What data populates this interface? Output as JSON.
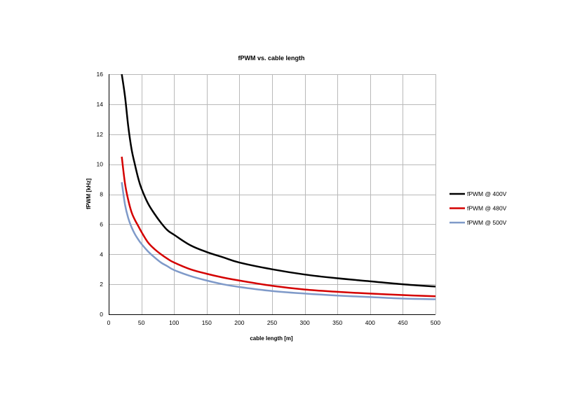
{
  "chart_data": {
    "type": "line",
    "title": "fPWM vs. cable length",
    "xlabel": "cable length [m]",
    "ylabel": "fPWM [kHz]",
    "xlim": [
      0,
      500
    ],
    "ylim": [
      0,
      16
    ],
    "xticks": [
      0,
      50,
      100,
      150,
      200,
      250,
      300,
      350,
      400,
      450,
      500
    ],
    "yticks": [
      0,
      2,
      4,
      6,
      8,
      10,
      12,
      14,
      16
    ],
    "grid": true,
    "legend_position": "right",
    "series": [
      {
        "name": "fPWM @ 400V",
        "color": "#000000",
        "points": [
          [
            20,
            16
          ],
          [
            25,
            14.5
          ],
          [
            30,
            12.5
          ],
          [
            35,
            11.0
          ],
          [
            40,
            10.0
          ],
          [
            45,
            9.1
          ],
          [
            50,
            8.4
          ],
          [
            60,
            7.4
          ],
          [
            70,
            6.7
          ],
          [
            80,
            6.1
          ],
          [
            90,
            5.6
          ],
          [
            100,
            5.3
          ],
          [
            125,
            4.6
          ],
          [
            150,
            4.15
          ],
          [
            175,
            3.8
          ],
          [
            200,
            3.45
          ],
          [
            250,
            3.0
          ],
          [
            300,
            2.65
          ],
          [
            350,
            2.4
          ],
          [
            400,
            2.2
          ],
          [
            450,
            2.0
          ],
          [
            500,
            1.85
          ]
        ]
      },
      {
        "name": "fPWM @ 480V",
        "color": "#d40000",
        "points": [
          [
            20,
            10.5
          ],
          [
            25,
            8.7
          ],
          [
            30,
            7.6
          ],
          [
            35,
            6.8
          ],
          [
            40,
            6.3
          ],
          [
            45,
            5.9
          ],
          [
            50,
            5.5
          ],
          [
            60,
            4.8
          ],
          [
            70,
            4.35
          ],
          [
            80,
            4.0
          ],
          [
            90,
            3.7
          ],
          [
            100,
            3.45
          ],
          [
            125,
            3.0
          ],
          [
            150,
            2.7
          ],
          [
            175,
            2.45
          ],
          [
            200,
            2.25
          ],
          [
            250,
            1.9
          ],
          [
            300,
            1.65
          ],
          [
            350,
            1.5
          ],
          [
            400,
            1.38
          ],
          [
            450,
            1.28
          ],
          [
            500,
            1.2
          ]
        ]
      },
      {
        "name": "fPWM @ 500V",
        "color": "#7f9ac9",
        "points": [
          [
            20,
            8.8
          ],
          [
            25,
            7.3
          ],
          [
            30,
            6.4
          ],
          [
            35,
            5.8
          ],
          [
            40,
            5.35
          ],
          [
            45,
            5.0
          ],
          [
            50,
            4.7
          ],
          [
            60,
            4.2
          ],
          [
            70,
            3.8
          ],
          [
            80,
            3.45
          ],
          [
            90,
            3.2
          ],
          [
            100,
            2.95
          ],
          [
            125,
            2.55
          ],
          [
            150,
            2.25
          ],
          [
            175,
            2.0
          ],
          [
            200,
            1.82
          ],
          [
            250,
            1.55
          ],
          [
            300,
            1.38
          ],
          [
            350,
            1.25
          ],
          [
            400,
            1.15
          ],
          [
            450,
            1.05
          ],
          [
            500,
            1.0
          ]
        ]
      }
    ]
  }
}
